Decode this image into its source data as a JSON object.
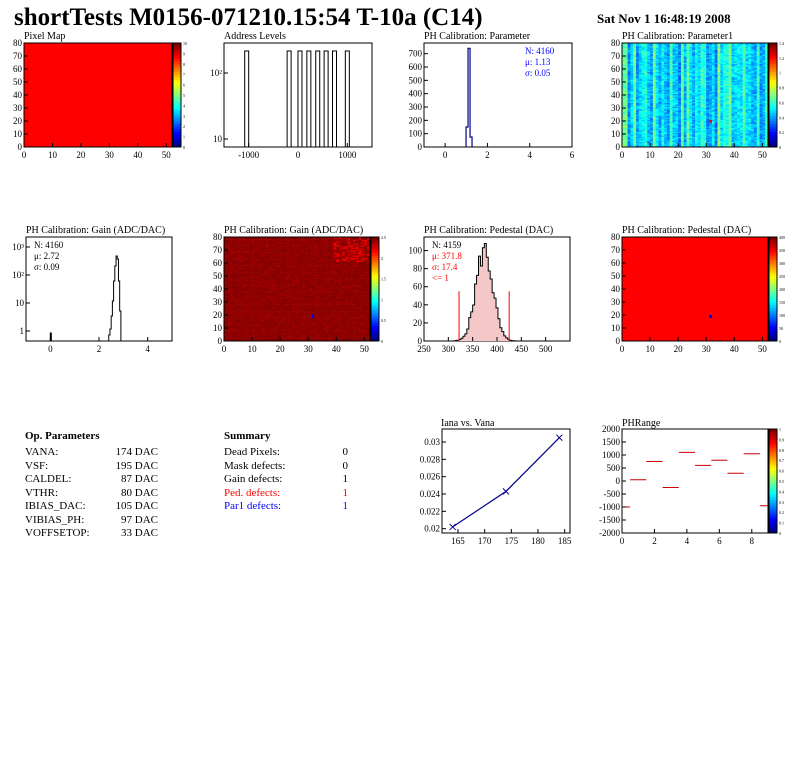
{
  "title": "shortTests M0156-071210.15:54 T-10a (C14)",
  "date": "Sat Nov  1 16:48:19 2008",
  "colors": {
    "red": "#ff0000",
    "blue": "#0000ff",
    "darkblue": "#00008b"
  },
  "panels": {
    "pixel_map": {
      "title": "Pixel Map"
    },
    "address_levels": {
      "title": "Address Levels"
    },
    "ph_param": {
      "title": "PH Calibration: Parameter"
    },
    "ph_param1": {
      "title": "PH Calibration: Parameter1"
    },
    "gain_hist": {
      "title": "PH Calibration: Gain (ADC/DAC)"
    },
    "gain_map": {
      "title": "PH Calibration: Gain (ADC/DAC)"
    },
    "pedestal_hist": {
      "title": "PH Calibration: Pedestal (DAC)"
    },
    "pedestal_map": {
      "title": "PH Calibration: Pedestal (DAC)"
    },
    "iana": {
      "title": "Iana vs. Vana"
    },
    "phrange": {
      "title": "PHRange"
    }
  },
  "chart_data": [
    {
      "id": "pixel_map",
      "type": "heatmap",
      "title": "Pixel Map",
      "xlim": [
        0,
        52
      ],
      "ylim": [
        0,
        80
      ],
      "xticks": [
        "0",
        "10",
        "20",
        "30",
        "40",
        "50"
      ],
      "yticks": [
        "0",
        "10",
        "20",
        "30",
        "40",
        "50",
        "60",
        "70",
        "80"
      ],
      "fill": "uniform-max",
      "colorbar_ticks": [
        "10",
        "9",
        "8",
        "7",
        "6",
        "5",
        "4",
        "3",
        "2",
        "1",
        "0"
      ]
    },
    {
      "id": "address_levels",
      "type": "bar",
      "title": "Address Levels",
      "xlim": [
        -1500,
        1500
      ],
      "xticks": [
        "-1000",
        "0",
        "1000"
      ],
      "ylog": true,
      "yticks": [
        "10",
        "10²"
      ],
      "peaks_x": [
        -1040,
        -180,
        40,
        220,
        400,
        570,
        740,
        1000
      ]
    },
    {
      "id": "ph_param",
      "type": "bar",
      "title": "PH Calibration: Parameter",
      "xlim": [
        -1,
        6
      ],
      "ylim": [
        0,
        780
      ],
      "xticks": [
        "0",
        "2",
        "4",
        "6"
      ],
      "yticks": [
        "0",
        "100",
        "200",
        "300",
        "400",
        "500",
        "600",
        "700"
      ],
      "stats": {
        "n": "N: 4160",
        "mu": "μ: 1.13",
        "sigma": "σ: 0.05"
      },
      "peak_x": 1.13,
      "peak_y": 740
    },
    {
      "id": "ph_param1",
      "type": "heatmap",
      "title": "PH Calibration: Parameter1",
      "xlim": [
        0,
        52
      ],
      "ylim": [
        0,
        80
      ],
      "xticks": [
        "0",
        "10",
        "20",
        "30",
        "40",
        "50"
      ],
      "yticks": [
        "0",
        "10",
        "20",
        "30",
        "40",
        "50",
        "60",
        "70",
        "80"
      ],
      "colorbar_ticks": [
        "1.4",
        "1.2",
        "1",
        "0.8",
        "0.6",
        "0.4",
        "0.2",
        "0"
      ]
    },
    {
      "id": "gain_hist",
      "type": "bar",
      "title": "PH Calibration: Gain (ADC/DAC)",
      "xlim": [
        -1,
        5
      ],
      "xticks": [
        "0",
        "2",
        "4"
      ],
      "ylog": true,
      "yticks": [
        "1",
        "10",
        "10²",
        "10³"
      ],
      "stats": {
        "n": "N: 4160",
        "mu": "μ: 2.72",
        "sigma": "σ: 0.09"
      },
      "peak_x": 2.72
    },
    {
      "id": "gain_map",
      "type": "heatmap",
      "title": "PH Calibration: Gain (ADC/DAC)",
      "xlim": [
        0,
        52
      ],
      "ylim": [
        0,
        80
      ],
      "xticks": [
        "0",
        "10",
        "20",
        "30",
        "40",
        "50"
      ],
      "yticks": [
        "0",
        "10",
        "20",
        "30",
        "40",
        "50",
        "60",
        "70",
        "80"
      ],
      "colorbar_ticks": [
        "2.5",
        "2",
        "1.5",
        "1",
        "0.5",
        "0"
      ]
    },
    {
      "id": "pedestal_hist",
      "type": "bar",
      "title": "PH Calibration: Pedestal (DAC)",
      "xlim": [
        250,
        550
      ],
      "ylim": [
        0,
        115
      ],
      "xticks": [
        "250",
        "300",
        "350",
        "400",
        "450",
        "500"
      ],
      "yticks": [
        "0",
        "20",
        "40",
        "60",
        "80",
        "100"
      ],
      "stats": {
        "n": "N: 4159",
        "mu": "μ: 371.8",
        "sigma": "σ: 17.4",
        "cut": "<= 1"
      },
      "peak_x": 372,
      "peak_y": 100
    },
    {
      "id": "pedestal_map",
      "type": "heatmap",
      "title": "PH Calibration: Pedestal (DAC)",
      "xlim": [
        0,
        52
      ],
      "ylim": [
        0,
        80
      ],
      "xticks": [
        "0",
        "10",
        "20",
        "30",
        "40",
        "50"
      ],
      "yticks": [
        "0",
        "10",
        "20",
        "30",
        "40",
        "50",
        "60",
        "70",
        "80"
      ],
      "fill": "uniform-max",
      "colorbar_ticks": [
        "400",
        "350",
        "300",
        "250",
        "200",
        "150",
        "100",
        "50",
        "0"
      ]
    },
    {
      "id": "iana",
      "type": "line",
      "title": "Iana vs. Vana",
      "x": [
        164,
        174,
        184
      ],
      "y": [
        0.0202,
        0.0243,
        0.0305
      ],
      "xlim": [
        162,
        186
      ],
      "ylim": [
        0.0195,
        0.0315
      ],
      "xticks": [
        "165",
        "170",
        "175",
        "180",
        "185"
      ],
      "yticks": [
        "0.02",
        "0.022",
        "0.024",
        "0.026",
        "0.028",
        "0.03"
      ]
    },
    {
      "id": "phrange",
      "type": "scatter",
      "title": "PHRange",
      "x": [
        0,
        1,
        2,
        3,
        4,
        5,
        6,
        7,
        8,
        9
      ],
      "y": [
        -1000,
        50,
        750,
        -250,
        1100,
        600,
        800,
        300,
        1050,
        -950
      ],
      "xlim": [
        0,
        9
      ],
      "ylim": [
        -2000,
        2000
      ],
      "xticks": [
        "0",
        "2",
        "4",
        "6",
        "8"
      ],
      "yticks": [
        "-2000",
        "-1500",
        "-1000",
        "-500",
        "0",
        "500",
        "1000",
        "1500",
        "2000"
      ]
    }
  ],
  "op_params": {
    "heading": "Op. Parameters",
    "rows": [
      {
        "k": "VANA:",
        "v": "174 DAC"
      },
      {
        "k": "VSF:",
        "v": "195 DAC"
      },
      {
        "k": "CALDEL:",
        "v": "87 DAC"
      },
      {
        "k": "VTHR:",
        "v": "80 DAC"
      },
      {
        "k": "IBIAS_DAC:",
        "v": "105 DAC"
      },
      {
        "k": "VIBIAS_PH:",
        "v": "97 DAC"
      },
      {
        "k": "VOFFSETOP:",
        "v": "33 DAC"
      }
    ]
  },
  "summary": {
    "heading": "Summary",
    "rows": [
      {
        "k": "Dead Pixels:",
        "v": "0",
        "color": "#000000"
      },
      {
        "k": "Mask defects:",
        "v": "0",
        "color": "#000000"
      },
      {
        "k": "Gain defects:",
        "v": "1",
        "color": "#000000"
      },
      {
        "k": "Ped. defects:",
        "v": "1",
        "color": "#ff0000"
      },
      {
        "k": "Par1 defects:",
        "v": "1",
        "color": "#0000ff"
      }
    ]
  }
}
